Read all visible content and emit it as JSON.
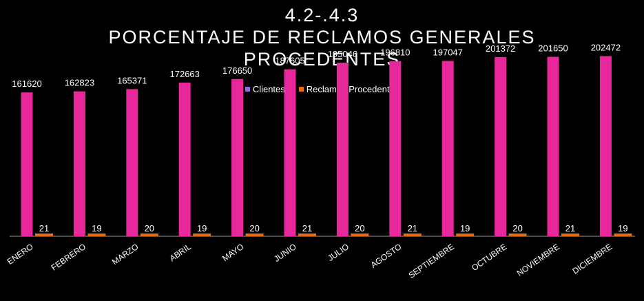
{
  "chart_data": {
    "type": "bar",
    "title_lines": [
      "4.2-.4.3",
      "PORCENTAJE DE RECLAMOS GENERALES",
      "PROCEDENTES"
    ],
    "categories": [
      "ENERO",
      "FEBRERO",
      "MARZO",
      "ABRIL",
      "MAYO",
      "JUNIO",
      "JULIO",
      "AGOSTO",
      "SEPTIEMBRE",
      "OCTUBRE",
      "NOVIEMBRE",
      "DICIEMBRE"
    ],
    "series": [
      {
        "name": "Clientes",
        "color": "#e8289a",
        "legend_color": "#8f6fd6",
        "values": [
          161620,
          162823,
          165371,
          172663,
          176650,
          187605,
          195046,
          196810,
          197047,
          201372,
          201650,
          202472
        ]
      },
      {
        "name": "Reclamos Procedentes",
        "color": "#e56a12",
        "legend_color": "#e56a12",
        "values": [
          21,
          19,
          20,
          19,
          20,
          21,
          20,
          21,
          19,
          20,
          21,
          19
        ]
      }
    ],
    "ylim": [
      0,
      250000
    ],
    "grid": false,
    "legend_position": "top"
  }
}
